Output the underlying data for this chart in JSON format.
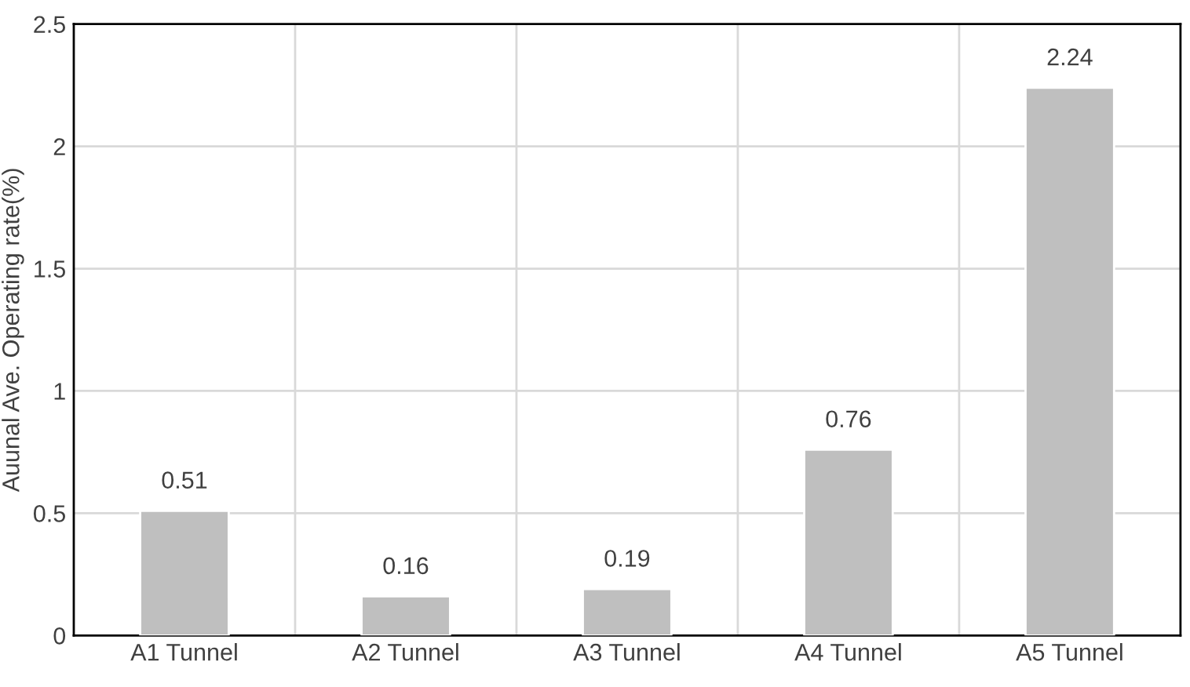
{
  "chart_data": {
    "type": "bar",
    "ylabel": "Auunal Ave. Operating rate(%)",
    "categories": [
      "A1 Tunnel",
      "A2 Tunnel",
      "A3 Tunnel",
      "A4 Tunnel",
      "A5 Tunnel"
    ],
    "values": [
      0.51,
      0.16,
      0.19,
      0.76,
      2.24
    ],
    "color": "#bfbfbf",
    "ylim": [
      0,
      2.5
    ],
    "yticks": [
      0,
      0.5,
      1,
      1.5,
      2,
      2.5
    ],
    "grid": true,
    "data_labels": true
  }
}
